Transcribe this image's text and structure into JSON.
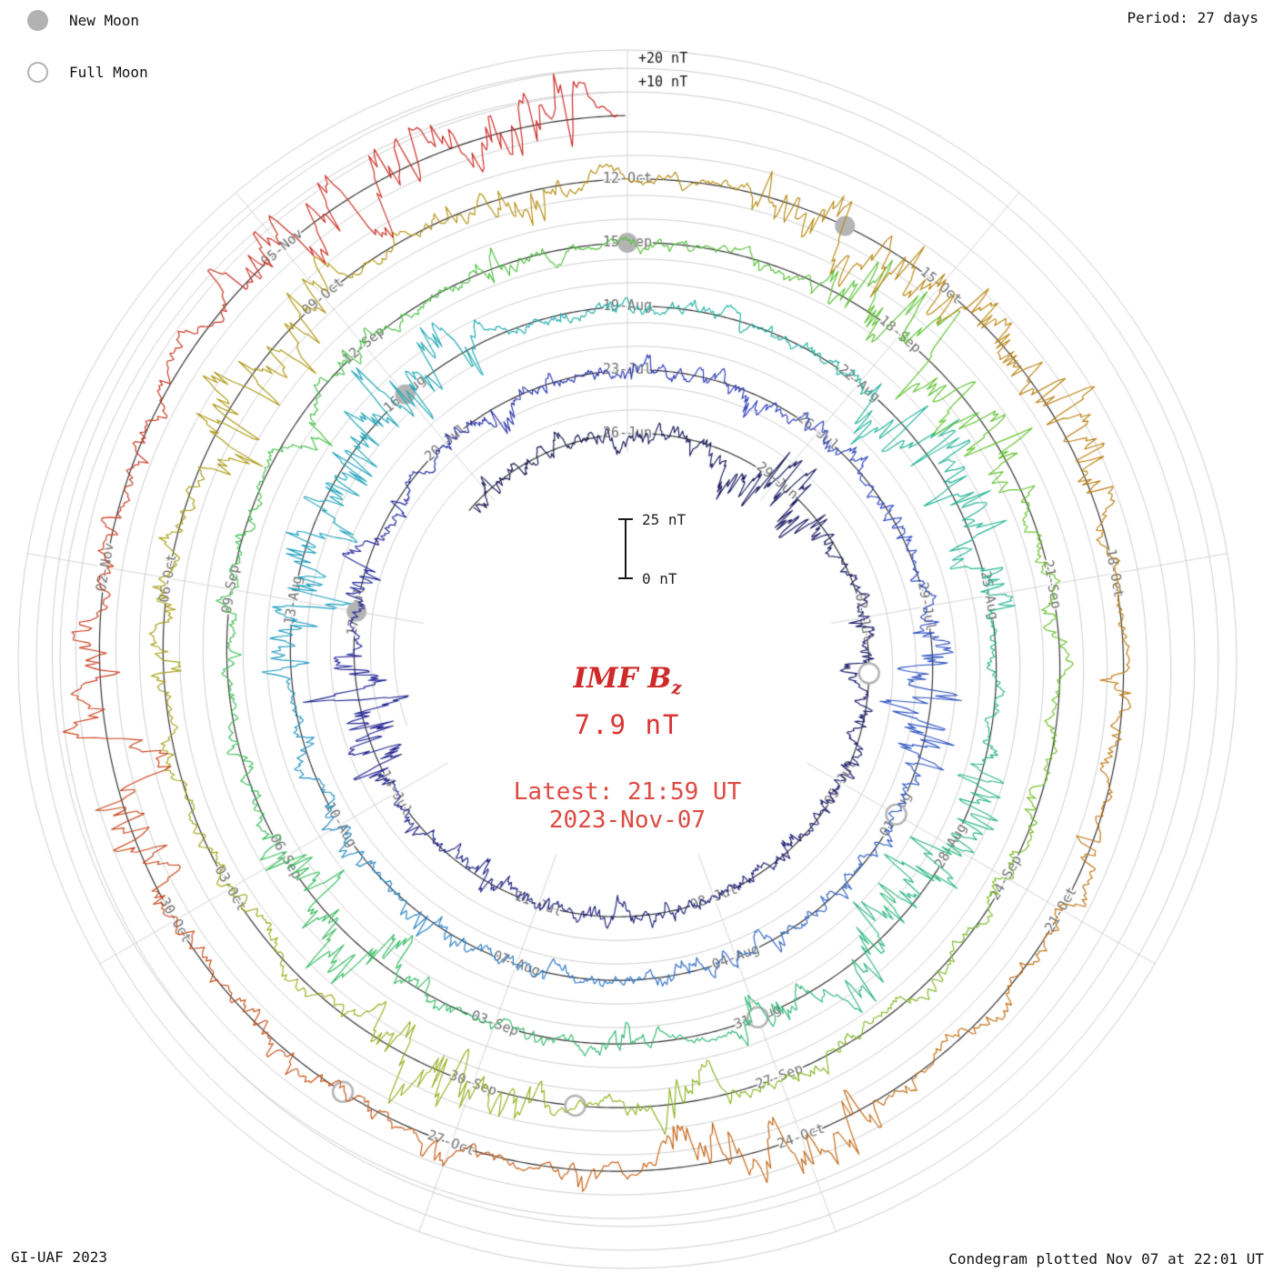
{
  "header": {
    "period_label": "Period: 27 days"
  },
  "legend": {
    "new_moon": "New Moon",
    "full_moon": "Full Moon"
  },
  "center": {
    "title": "IMF B",
    "title_sub": "z",
    "value": "7.9 nT",
    "latest_line1": "Latest: 21:59 UT",
    "latest_line2": "2023-Nov-07"
  },
  "scale": {
    "bar_top_label": "25 nT",
    "bar_bottom_label": "0 nT",
    "outer_plus10": "+10 nT",
    "outer_plus20": "+20 nT"
  },
  "footer": {
    "left": "GI-UAF 2023",
    "right": "Condegram plotted Nov 07 at 22:01 UT"
  },
  "chart_data": {
    "type": "line",
    "polar_spiral": true,
    "title": "IMF Bz",
    "latest_value_nT": 7.9,
    "latest_time_label": "Latest: 21:59 UT",
    "latest_date_label": "2023-Nov-07",
    "period_days": 27,
    "days_per_spoke": 3,
    "spokes_per_revolution": 9,
    "direction": "clockwise",
    "reference_date": "2023-06-26",
    "data_start_days": -3.4,
    "data_end_days": 134.92,
    "radial_scale": {
      "zero_label": "0 nT",
      "span_label": "25 nT",
      "gridline_labels": [
        "+10 nT",
        "+20 nT"
      ],
      "nT_per_gridline": 10
    },
    "rings": [
      {
        "labels": [
          "26-Jun",
          "29-Jun",
          "02-Jul",
          "05-Jul",
          "08-Jul",
          "11-Jul",
          "14-Jul",
          "17-Jul",
          "20-Jul"
        ]
      },
      {
        "labels": [
          "23-Jul",
          "26-Jul",
          "29-Jul",
          "01-Aug",
          "04-Aug",
          "07-Aug",
          "10-Aug",
          "13-Aug",
          "16-Aug"
        ]
      },
      {
        "labels": [
          "19-Aug",
          "22-Aug",
          "25-Aug",
          "28-Aug",
          "31-Aug",
          "03-Sep",
          "06-Sep",
          "09-Sep",
          "12-Sep"
        ]
      },
      {
        "labels": [
          "15-Sep",
          "18-Sep",
          "21-Sep",
          "24-Sep",
          "27-Sep",
          "30-Sep",
          "03-Oct",
          "06-Oct",
          "09-Oct"
        ]
      },
      {
        "labels": [
          "12-Oct",
          "15-Oct",
          "18-Oct",
          "21-Oct",
          "24-Oct",
          "27-Oct",
          "30-Oct",
          "02-Nov",
          "05-Nov"
        ]
      }
    ],
    "new_moon_dates": [
      "2023-07-17",
      "2023-08-16",
      "2023-09-15",
      "2023-10-14"
    ],
    "full_moon_dates": [
      "2023-07-03",
      "2023-08-01",
      "2023-08-31",
      "2023-09-29",
      "2023-10-28"
    ],
    "color_stops": [
      {
        "t": -3,
        "color": "#15154d"
      },
      {
        "t": 10,
        "color": "#1b1b70"
      },
      {
        "t": 22,
        "color": "#23269a"
      },
      {
        "t": 30,
        "color": "#2e3fbf"
      },
      {
        "t": 40,
        "color": "#2f6ec6"
      },
      {
        "t": 48,
        "color": "#1d9fc0"
      },
      {
        "t": 56,
        "color": "#1fb3a2"
      },
      {
        "t": 66,
        "color": "#2fb878"
      },
      {
        "t": 76,
        "color": "#3fc04a"
      },
      {
        "t": 86,
        "color": "#63c32c"
      },
      {
        "t": 96,
        "color": "#97b11e"
      },
      {
        "t": 106,
        "color": "#b39210"
      },
      {
        "t": 114,
        "color": "#bd7d10"
      },
      {
        "t": 122,
        "color": "#c55c10"
      },
      {
        "t": 129,
        "color": "#c8391b"
      },
      {
        "t": 135,
        "color": "#cd2020"
      }
    ],
    "storm_windows_days": [
      [
        2,
        4
      ],
      [
        18,
        20
      ],
      [
        33,
        35
      ],
      [
        47,
        52
      ],
      [
        57,
        60
      ],
      [
        62,
        65
      ],
      [
        70,
        72
      ],
      [
        83,
        86
      ],
      [
        95,
        97
      ],
      [
        103,
        105
      ],
      [
        109,
        113
      ],
      [
        119,
        121
      ],
      [
        126,
        128
      ],
      [
        131.5,
        134.3
      ]
    ],
    "grid_color": "#cfcfcf",
    "baseline_color": "#2b2b2b",
    "label_color": "#6f6f6f",
    "moon_marker_color": "#b4b4b4"
  }
}
